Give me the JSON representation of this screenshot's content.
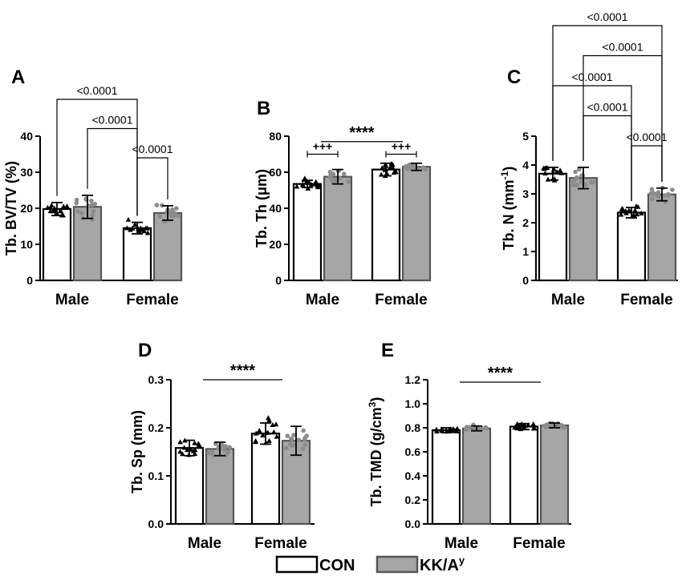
{
  "colors": {
    "con_fill": "#ffffff",
    "kk_fill": "#a6a6a6",
    "con_marker": "#000000",
    "kk_marker": "#8c8c8c",
    "axis": "#000000"
  },
  "legend": {
    "items": [
      {
        "label": "CON"
      },
      {
        "label": "KK/A",
        "sup": "y"
      }
    ]
  },
  "chart_data": [
    {
      "panel": "A",
      "type": "bar",
      "ylabel": "Tb. BV/TV (%)",
      "ylabel_sup": "",
      "ylim": [
        0,
        40
      ],
      "yticks": [
        0,
        10,
        20,
        30,
        40
      ],
      "ytick_labels": [
        "0",
        "10",
        "20",
        "30",
        "40"
      ],
      "categories": [
        "Male",
        "Female"
      ],
      "series": [
        {
          "name": "CON",
          "values": [
            19.8,
            14.5
          ],
          "sd": [
            1.8,
            1.6
          ]
        },
        {
          "name": "KK/Ay",
          "values": [
            20.4,
            18.7
          ],
          "sd": [
            3.2,
            2.0
          ]
        }
      ],
      "comparisons": [
        {
          "text": "<0.0001",
          "from": [
            0,
            0
          ],
          "to": [
            1,
            0
          ],
          "level": 3
        },
        {
          "text": "<0.0001",
          "from": [
            0,
            1
          ],
          "to": [
            1,
            0
          ],
          "level": 2
        },
        {
          "text": "<0.0001",
          "from": [
            1,
            0
          ],
          "to": [
            1,
            1
          ],
          "level": 1
        }
      ]
    },
    {
      "panel": "B",
      "type": "bar",
      "ylabel": "Tb. Th (μm)",
      "ylabel_sup": "",
      "ylim": [
        0,
        80
      ],
      "yticks": [
        0,
        20,
        40,
        60,
        80
      ],
      "ytick_labels": [
        "0",
        "20",
        "40",
        "60",
        "80"
      ],
      "categories": [
        "Male",
        "Female"
      ],
      "series": [
        {
          "name": "CON",
          "values": [
            53.5,
            61.5
          ],
          "sd": [
            2.0,
            3.5
          ]
        },
        {
          "name": "KK/Ay",
          "values": [
            57.5,
            63.0
          ],
          "sd": [
            4.0,
            2.0
          ]
        }
      ],
      "annotations": [
        {
          "text": "****",
          "kind": "sex_effect",
          "value": 77
        },
        {
          "text": "+++",
          "kind": "genotype_effect",
          "group": 0,
          "value": 70
        },
        {
          "text": "+++",
          "kind": "genotype_effect",
          "group": 1,
          "value": 70
        }
      ]
    },
    {
      "panel": "C",
      "type": "bar",
      "ylabel": "Tb. N (mm",
      "ylabel_sup": "-1",
      "ylabel_after": ")",
      "ylim": [
        0,
        5
      ],
      "yticks": [
        0,
        1,
        2,
        3,
        4,
        5
      ],
      "ytick_labels": [
        "0",
        "1",
        "2",
        "3",
        "4",
        "5"
      ],
      "categories": [
        "Male",
        "Female"
      ],
      "series": [
        {
          "name": "CON",
          "values": [
            3.7,
            2.35
          ],
          "sd": [
            0.22,
            0.18
          ]
        },
        {
          "name": "KK/Ay",
          "values": [
            3.55,
            2.98
          ],
          "sd": [
            0.37,
            0.22
          ]
        }
      ],
      "comparisons": [
        {
          "text": "<0.0001",
          "from": [
            0,
            0
          ],
          "to": [
            1,
            1
          ],
          "level": 5
        },
        {
          "text": "<0.0001",
          "from": [
            0,
            1
          ],
          "to": [
            1,
            1
          ],
          "level": 4
        },
        {
          "text": "<0.0001",
          "from": [
            0,
            0
          ],
          "to": [
            1,
            0
          ],
          "level": 3
        },
        {
          "text": "<0.0001",
          "from": [
            0,
            1
          ],
          "to": [
            1,
            0
          ],
          "level": 2
        },
        {
          "text": "<0.0001",
          "from": [
            1,
            0
          ],
          "to": [
            1,
            1
          ],
          "level": 1
        }
      ]
    },
    {
      "panel": "D",
      "type": "bar",
      "ylabel": "Tb. Sp (mm)",
      "ylabel_sup": "",
      "ylim": [
        0,
        0.3
      ],
      "yticks": [
        0,
        0.1,
        0.2,
        0.3
      ],
      "ytick_labels": [
        "0.0",
        "0.1",
        "0.2",
        "0.3"
      ],
      "categories": [
        "Male",
        "Female"
      ],
      "series": [
        {
          "name": "CON",
          "values": [
            0.158,
            0.188
          ],
          "sd": [
            0.016,
            0.022
          ]
        },
        {
          "name": "KK/Ay",
          "values": [
            0.156,
            0.173
          ],
          "sd": [
            0.014,
            0.03
          ]
        }
      ],
      "annotations": [
        {
          "text": "****",
          "kind": "sex_effect",
          "value": 0.3
        }
      ]
    },
    {
      "panel": "E",
      "type": "bar",
      "ylabel": "Tb. TMD (g/cm",
      "ylabel_sup": "3",
      "ylabel_after": ")",
      "ylim": [
        0,
        1.2
      ],
      "yticks": [
        0,
        0.2,
        0.4,
        0.6,
        0.8,
        1.0,
        1.2
      ],
      "ytick_labels": [
        "0.0",
        "0.2",
        "0.4",
        "0.6",
        "0.8",
        "1.0",
        "1.2"
      ],
      "categories": [
        "Male",
        "Female"
      ],
      "series": [
        {
          "name": "CON",
          "values": [
            0.78,
            0.81
          ],
          "sd": [
            0.02,
            0.025
          ]
        },
        {
          "name": "KK/Ay",
          "values": [
            0.795,
            0.82
          ],
          "sd": [
            0.02,
            0.02
          ]
        }
      ],
      "annotations": [
        {
          "text": "****",
          "kind": "sex_effect",
          "value": 1.18
        }
      ]
    }
  ]
}
